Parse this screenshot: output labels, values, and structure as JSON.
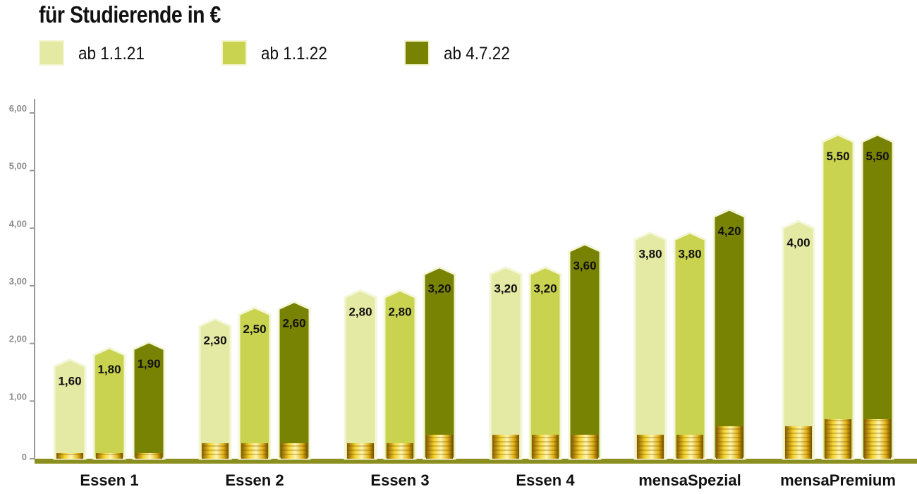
{
  "title": "für Studierende in €",
  "chart_data": {
    "type": "bar",
    "title": "für Studierende in €",
    "xlabel": "",
    "ylabel": "",
    "ylim": [
      0,
      6
    ],
    "yticks": [
      "0",
      "1,00",
      "2,00",
      "3,00",
      "4,00",
      "5,00",
      "6,00"
    ],
    "categories": [
      "Essen 1",
      "Essen 2",
      "Essen 3",
      "Essen 4",
      "mensaSpezial",
      "mensaPremium"
    ],
    "series": [
      {
        "name": "ab 1.1.21",
        "color": "#e4e9a4",
        "values": [
          1.6,
          2.3,
          2.8,
          3.2,
          3.8,
          4.0
        ],
        "labels": [
          "1,60",
          "2,30",
          "2,80",
          "3,20",
          "3,80",
          "4,00"
        ]
      },
      {
        "name": "ab 1.1.22",
        "color": "#c9d34f",
        "values": [
          1.8,
          2.5,
          2.8,
          3.2,
          3.8,
          5.5
        ],
        "labels": [
          "1,80",
          "2,50",
          "2,80",
          "3,20",
          "3,80",
          "5,50"
        ]
      },
      {
        "name": "ab 4.7.22",
        "color": "#798303",
        "values": [
          1.9,
          2.6,
          3.2,
          3.6,
          4.2,
          5.5
        ],
        "labels": [
          "1,90",
          "2,60",
          "3,20",
          "3,60",
          "4,20",
          "5,50"
        ]
      }
    ],
    "legend": "top-left",
    "grid": false
  }
}
